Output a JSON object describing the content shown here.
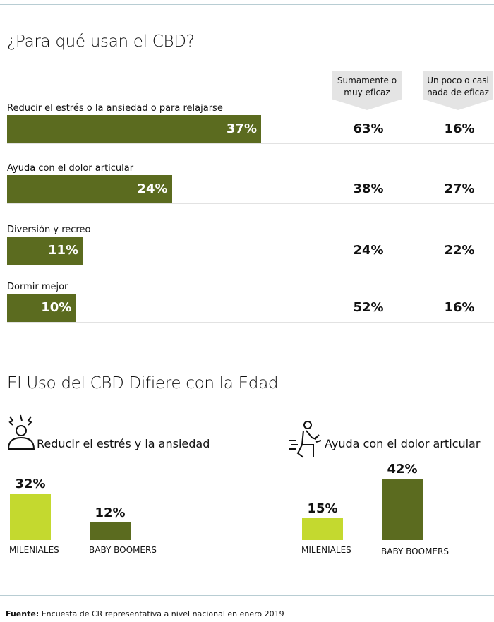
{
  "chart_data": [
    {
      "type": "barh",
      "title": "¿Para qué usan el CBD?",
      "categories": [
        "Reducir el estrés o la ansiedad o para relajarse",
        "Ayuda con el dolor articular",
        "Diversión y recreo",
        "Dormir mejor"
      ],
      "values": [
        37,
        24,
        11,
        10
      ],
      "value_labels": [
        "37%",
        "24%",
        "11%",
        "10%"
      ],
      "color": "#5b6b1f",
      "columns": [
        {
          "name": "Sumamente o muy eficaz",
          "values": [
            63,
            38,
            24,
            52
          ],
          "value_labels": [
            "63%",
            "38%",
            "24%",
            "52%"
          ]
        },
        {
          "name": "Un poco o casi nada de eficaz",
          "values": [
            16,
            27,
            22,
            16
          ],
          "value_labels": [
            "16%",
            "27%",
            "22%",
            "16%"
          ]
        }
      ]
    },
    {
      "type": "bar",
      "title": "Reducir el estrés y la ansiedad",
      "categories": [
        "MILENIALES",
        "BABY BOOMERS"
      ],
      "values": [
        32,
        12
      ],
      "value_labels": [
        "32%",
        "12%"
      ],
      "colors": [
        "#c4d92f",
        "#5b6b1f"
      ]
    },
    {
      "type": "bar",
      "title": "Ayuda con el dolor articular",
      "categories": [
        "MILENIALES",
        "BABY BOOMERS"
      ],
      "values": [
        15,
        42
      ],
      "value_labels": [
        "15%",
        "42%"
      ],
      "colors": [
        "#c4d92f",
        "#5b6b1f"
      ]
    }
  ],
  "section_title": "El Uso del CBD Difiere con la Edad",
  "footer": {
    "label": "Fuente:",
    "text": "Encuesta de CR representativa a nivel nacional en enero 2019"
  }
}
